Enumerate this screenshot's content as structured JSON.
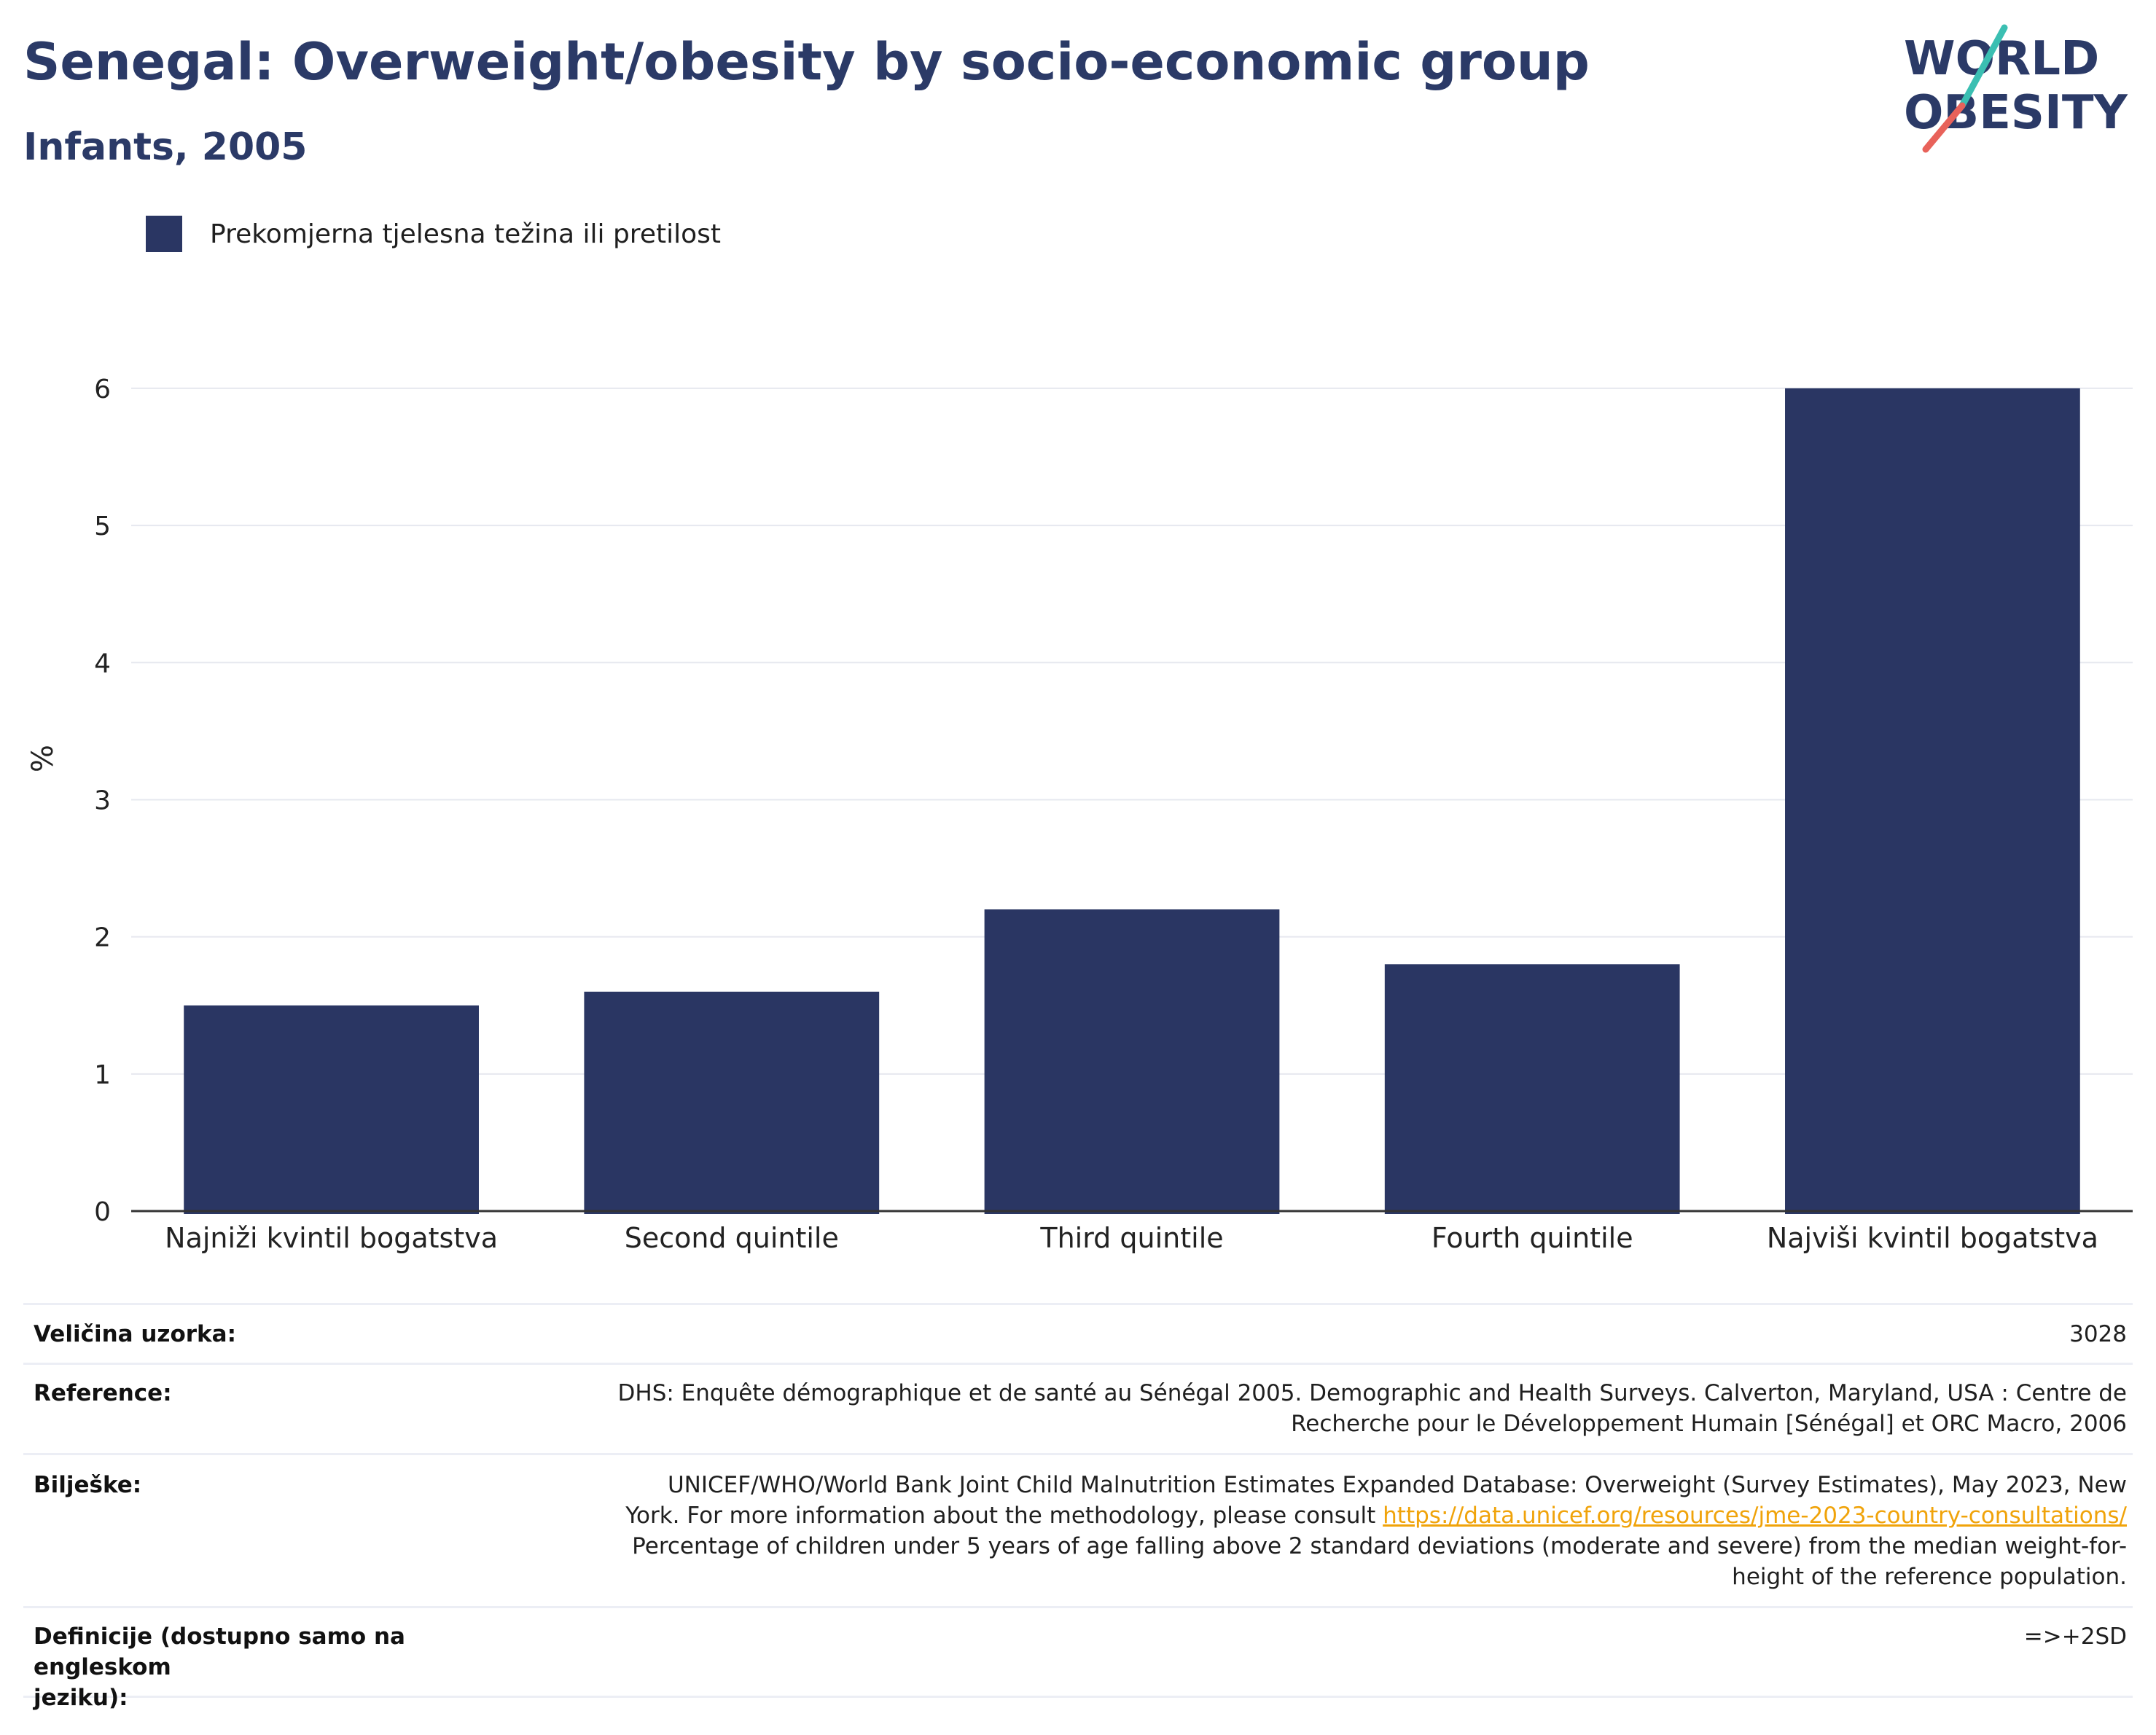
{
  "header": {
    "title": "Senegal: Overweight/obesity by socio-economic group",
    "subtitle": "Infants, 2005"
  },
  "logo": {
    "line1": "WORLD",
    "line2": "OBESITY"
  },
  "colors": {
    "bar": "#2a3663",
    "title": "#2b3a67",
    "grid": "#e6e8ef",
    "link": "#f0a30a",
    "logo_teal": "#3bbfb2",
    "logo_red": "#e8625a"
  },
  "chart_data": {
    "type": "bar",
    "categories": [
      "Najniži kvintil bogatstva",
      "Second quintile",
      "Third quintile",
      "Fourth quintile",
      "Najviši kvintil bogatstva"
    ],
    "series": [
      {
        "name": "Prekomjerna tjelesna težina ili pretilost",
        "values": [
          1.5,
          1.6,
          2.2,
          1.8,
          6.0
        ]
      }
    ],
    "ylabel": "%",
    "yticks": [
      "0",
      "1",
      "2",
      "3",
      "4",
      "5",
      "6"
    ],
    "ylim": [
      0,
      6.6
    ],
    "grid": true,
    "legend": "top-left"
  },
  "meta": {
    "sample_label": "Veličina uzorka:",
    "sample_value": "3028",
    "reference_label": "Reference:",
    "reference_line1": "DHS: Enquête démographique et de santé au Sénégal 2005. Demographic and Health Surveys. Calverton, Maryland, USA : Centre de",
    "reference_line2": "Recherche pour le Développement Humain [Sénégal] et ORC Macro, 2006",
    "notes_label": "Bilješke:",
    "notes_line1": "UNICEF/WHO/World Bank Joint Child Malnutrition Estimates Expanded Database: Overweight (Survey Estimates), May 2023, New",
    "notes_line2_prefix": "York. For more information about the methodology, please consult",
    "notes_link": "https://data.unicef.org/resources/jme-2023-country-consultations/",
    "notes_line3": "Percentage of children under 5 years of age falling above 2 standard deviations (moderate and severe) from the median weight-for-",
    "notes_line4": "height of the reference population.",
    "definitions_label_line1": "Definicije (dostupno samo na engleskom",
    "definitions_label_line2": "jeziku):",
    "definitions_value": "=>+2SD"
  }
}
